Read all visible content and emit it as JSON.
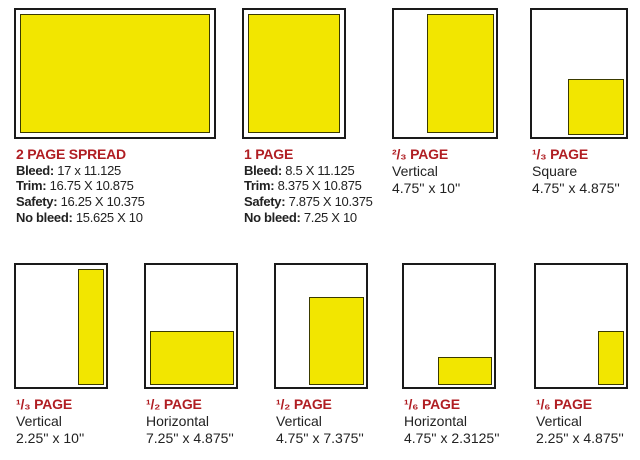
{
  "colors": {
    "ad_fill": "#f2e600",
    "heading": "#b01e23",
    "border": "#1a1a1a"
  },
  "spread": {
    "title": "2 PAGE SPREAD",
    "specs": [
      {
        "label": "Bleed:",
        "value": "17 x 11.125"
      },
      {
        "label": "Trim:",
        "value": "16.75 X 10.875"
      },
      {
        "label": "Safety:",
        "value": "16.25 X 10.375"
      },
      {
        "label": "No bleed:",
        "value": "15.625 X 10"
      }
    ]
  },
  "full_page": {
    "title": "1 PAGE",
    "specs": [
      {
        "label": "Bleed:",
        "value": "8.5 X 11.125"
      },
      {
        "label": "Trim:",
        "value": "8.375 X 10.875"
      },
      {
        "label": "Safety:",
        "value": "7.875 X 10.375"
      },
      {
        "label": "No bleed:",
        "value": "7.25 X 10"
      }
    ]
  },
  "ads": [
    {
      "title": "²/₃ PAGE",
      "orientation": "Vertical",
      "size": "4.75'' x 10''"
    },
    {
      "title": "¹/₃ PAGE",
      "orientation": "Square",
      "size": "4.75'' x 4.875''"
    },
    {
      "title": "¹/₃ PAGE",
      "orientation": "Vertical",
      "size": "2.25'' x 10''"
    },
    {
      "title": "¹/₂ PAGE",
      "orientation": "Horizontal",
      "size": "7.25'' x 4.875''"
    },
    {
      "title": "¹/₂ PAGE",
      "orientation": "Vertical",
      "size": "4.75'' x 7.375''"
    },
    {
      "title": "¹/₆ PAGE",
      "orientation": "Horizontal",
      "size": "4.75'' x 2.3125''"
    },
    {
      "title": "¹/₆ PAGE",
      "orientation": "Vertical",
      "size": "2.25'' x 4.875''"
    }
  ]
}
